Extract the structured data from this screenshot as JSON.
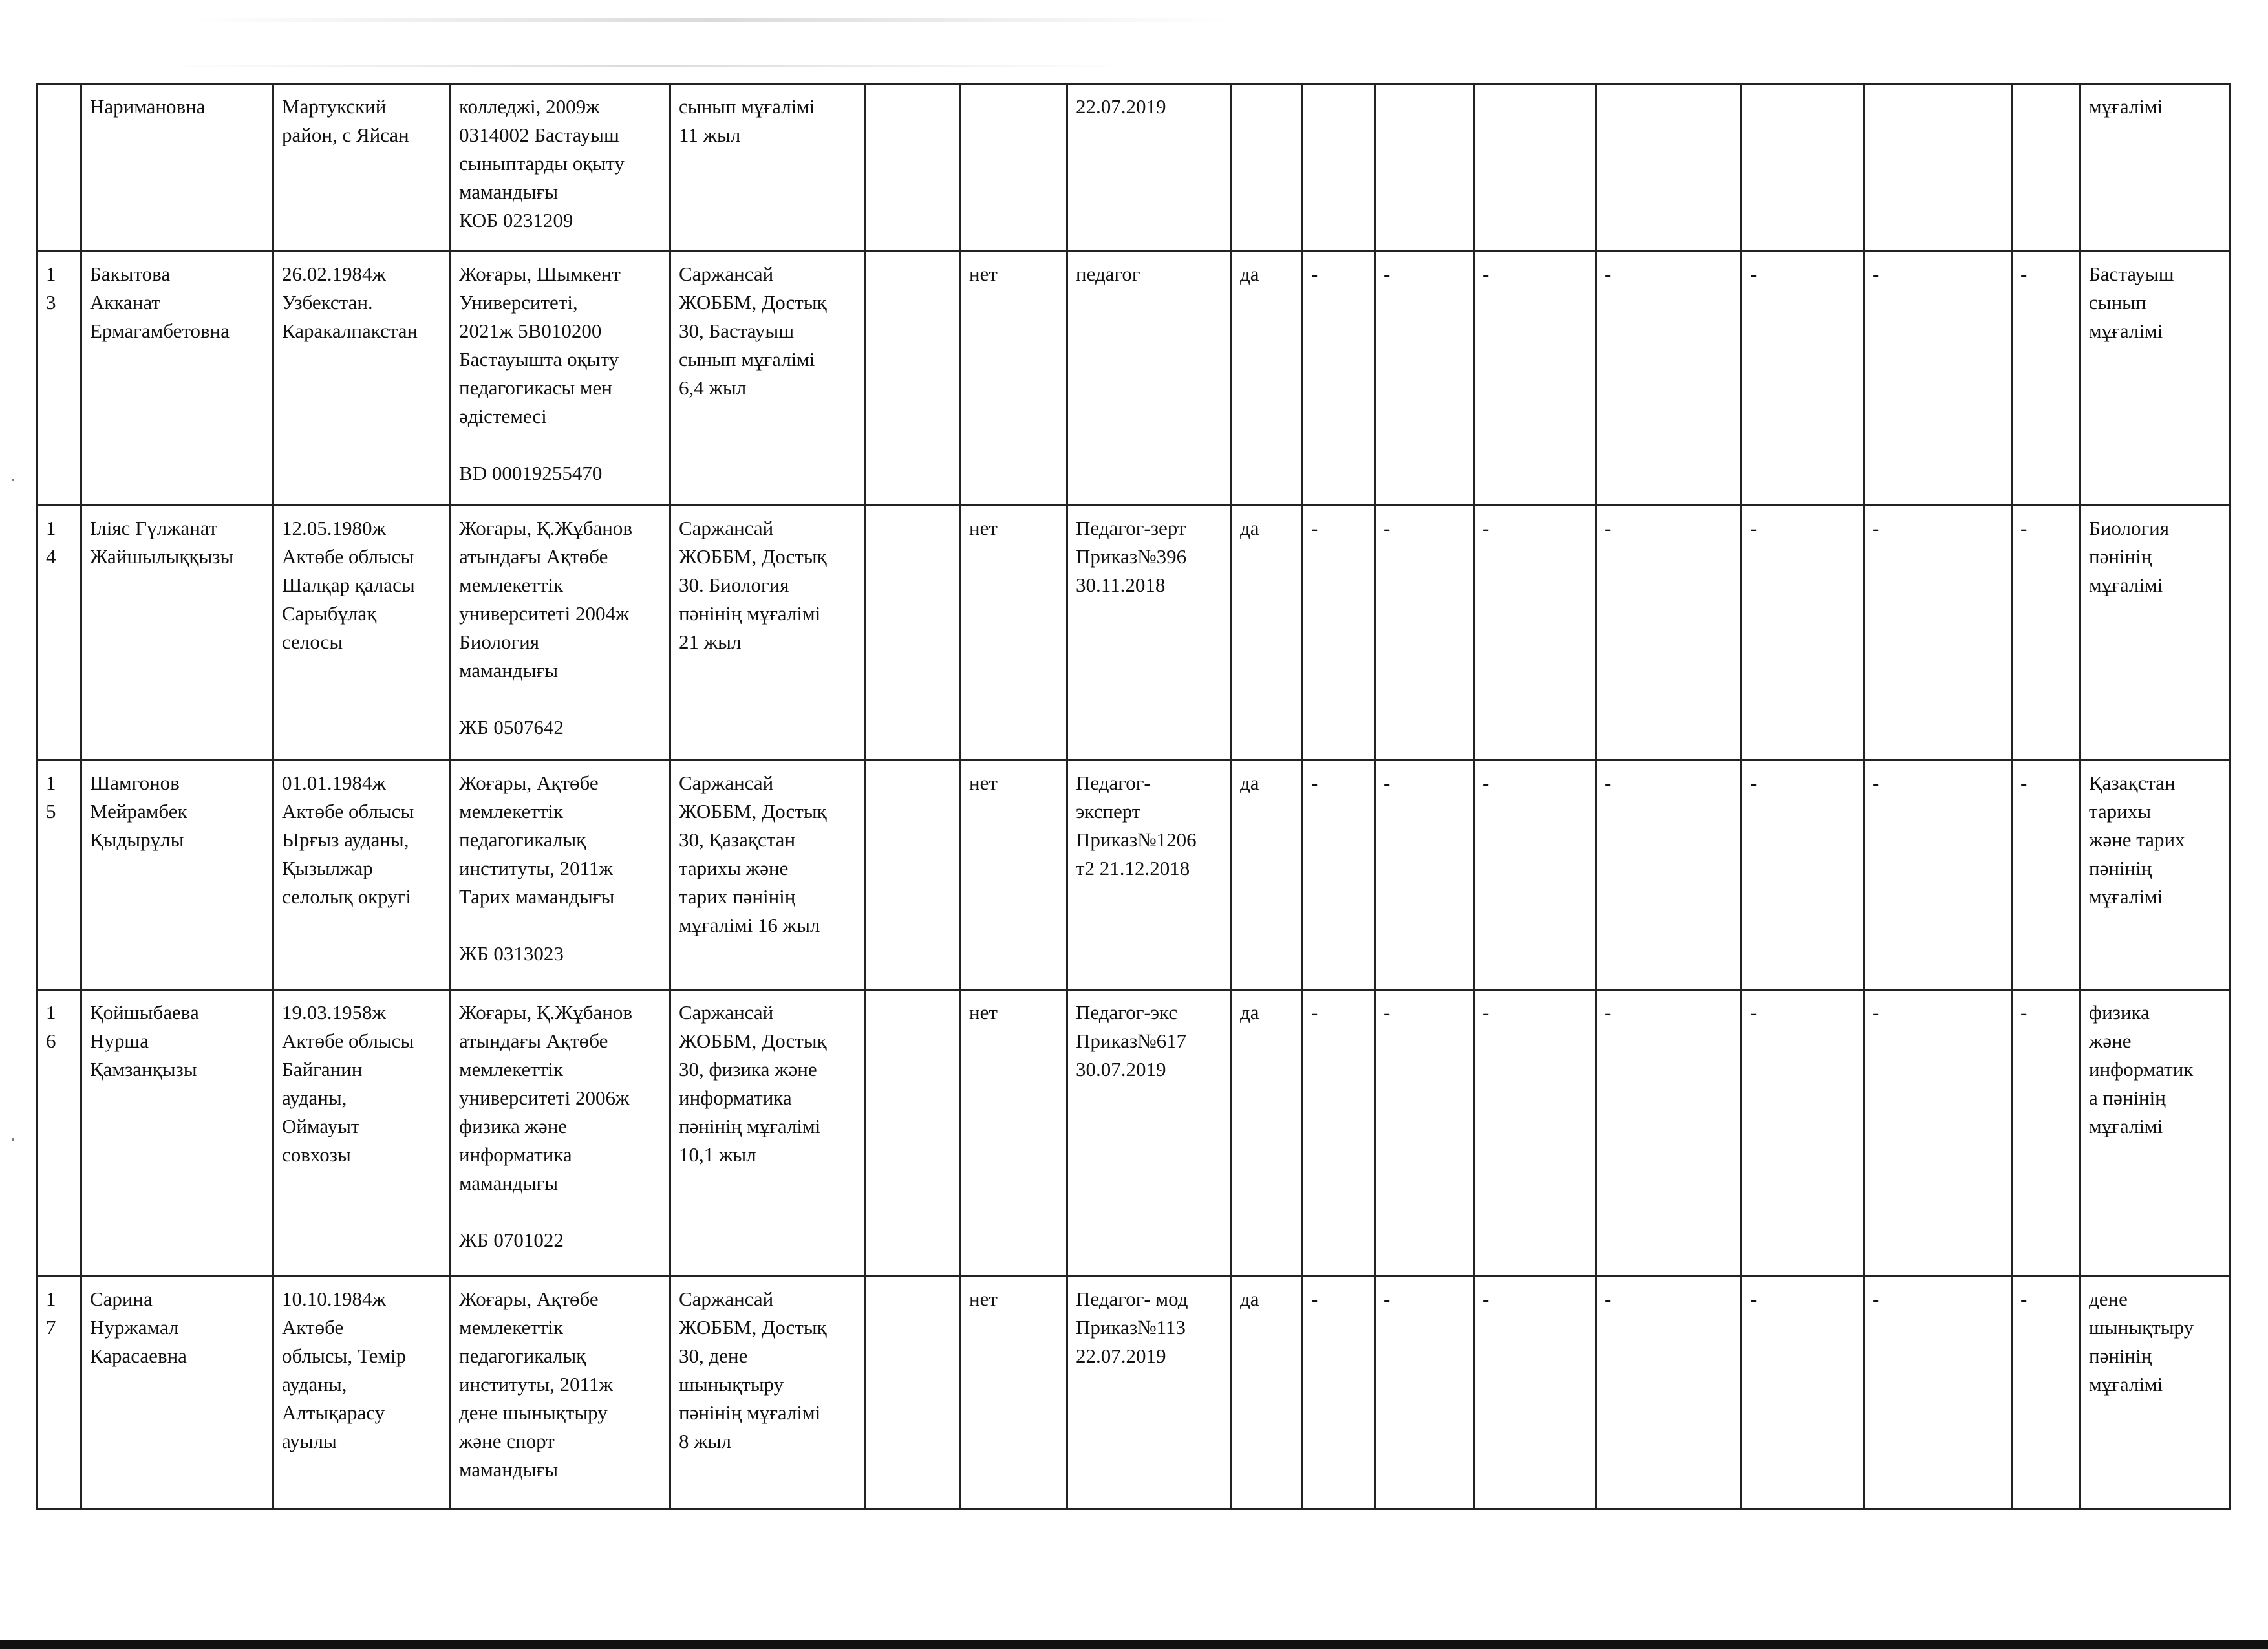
{
  "table": {
    "rows": [
      {
        "num": "",
        "name": "Наримановна",
        "birth": "Мартукский\nрайон, с Яйсан",
        "education": "колледжі, 2009ж\n0314002 Бастауыш\nсыныптарды оқыту\nмамандығы\nКОБ 0231209",
        "work": "сынып мұғалімі\n11 жыл",
        "col6": "",
        "col7": "",
        "category": "22.07.2019",
        "col9": "",
        "dashes": [
          "",
          "",
          "",
          "",
          "",
          "",
          ""
        ],
        "subject": "мұғалімі"
      },
      {
        "num": "1\n3",
        "name": "Бакытова\nАкканат\nЕрмагамбетовна",
        "birth": "26.02.1984ж\nУзбекстан.\nКаракалпакстан",
        "education": "Жоғары, Шымкент\nУниверситеті,\n2021ж 5В010200\nБастауышта оқыту\nпедагогикасы мен\nәдістемесі\n\nBD 00019255470",
        "work": "Саржансай\nЖОББМ, Достық\n30, Бастауыш\nсынып мұғалімі\n6,4 жыл",
        "col6": "",
        "col7": "нет",
        "category": "педагог",
        "col9": "да",
        "dashes": [
          "-",
          "-",
          "-",
          "-",
          "-",
          "-",
          "-"
        ],
        "subject": "Бастауыш\nсынып\nмұғалімі"
      },
      {
        "num": "1\n4",
        "name": "Іліяс Гүлжанат\nЖайшылыққызы",
        "birth": "12.05.1980ж\nАктөбе облысы\nШалқар қаласы\nСарыбұлақ\nселосы",
        "education": "Жоғары, Қ.Жұбанов\nатындағы Ақтөбе\nмемлекеттік\nуниверситеті 2004ж\nБиология\nмамандығы\n\nЖБ 0507642",
        "work": "Саржансай\nЖОББМ, Достық\n30. Биология\nпәнінің мұғалімі\n21 жыл",
        "col6": "",
        "col7": "нет",
        "category": "Педагог-зерт\nПриказ№396\n30.11.2018",
        "col9": "да",
        "dashes": [
          "-",
          "-",
          "-",
          "-",
          "-",
          "-",
          "-"
        ],
        "subject": "Биология\nпәнінің\nмұғалімі"
      },
      {
        "num": "1\n5",
        "name": "Шамгонов\nМейрамбек\nҚыдырұлы",
        "birth": "01.01.1984ж\nАктөбе облысы\nЫрғыз ауданы,\nҚызылжар\nселолық округі",
        "education": "Жоғары, Ақтөбе\nмемлекеттік\nпедагогикалық\nинституты, 2011ж\nТарих мамандығы\n\nЖБ 0313023",
        "work": "Саржансай\nЖОББМ, Достық\n30, Қазақстан\nтарихы және\nтарих пәнінің\nмұғалімі 16 жыл",
        "col6": "",
        "col7": "нет",
        "category": "Педагог-\nэксперт\nПриказ№1206\nт2 21.12.2018",
        "col9": "да",
        "dashes": [
          "-",
          "-",
          "-",
          "-",
          "-",
          "-",
          "-"
        ],
        "subject": "Қазақстан\nтарихы\nжәне тарих\nпәнінің\nмұғалімі"
      },
      {
        "num": "1\n6",
        "name": "Қойшыбаева\nНурша\nҚамзанқызы",
        "birth": "19.03.1958ж\nАктөбе облысы\nБайганин\nауданы,\nОймауыт\nсовхозы",
        "education": "Жоғары, Қ.Жұбанов\nатындағы Ақтөбе\nмемлекеттік\nуниверситеті 2006ж\nфизика және\nинформатика\nмамандығы\n\nЖБ 0701022",
        "work": "Саржансай\nЖОББМ, Достық\n30, физика және\nинформатика\nпәнінің мұғалімі\n10,1 жыл",
        "col6": "",
        "col7": "нет",
        "category": "Педагог-экс\nПриказ№617\n30.07.2019",
        "col9": "да",
        "dashes": [
          "-",
          "-",
          "-",
          "-",
          "-",
          "-",
          "-"
        ],
        "subject": "физика\nжәне\nинформатик\nа пәнінің\nмұғалімі"
      },
      {
        "num": "1\n7",
        "name": "Сарина\nНуржамал\nКарасаевна",
        "birth": "10.10.1984ж\nАктөбе\nоблысы, Темір\nауданы,\nАлтықарасу\nауылы",
        "education": "Жоғары, Ақтөбе\nмемлекеттік\nпедагогикалық\nинституты, 2011ж\nдене шынықтыру\nжәне спорт\nмамандығы",
        "work": "Саржансай\nЖОББМ, Достық\n30, дене\nшынықтыру\nпәнінің мұғалімі\n8 жыл",
        "col6": "",
        "col7": "нет",
        "category": "Педагог- мод\nПриказ№113\n22.07.2019",
        "col9": "да",
        "dashes": [
          "-",
          "-",
          "-",
          "-",
          "-",
          "-",
          "-"
        ],
        "subject": "дене\nшынықтыру\nпәнінің\nмұғалімі"
      }
    ]
  }
}
